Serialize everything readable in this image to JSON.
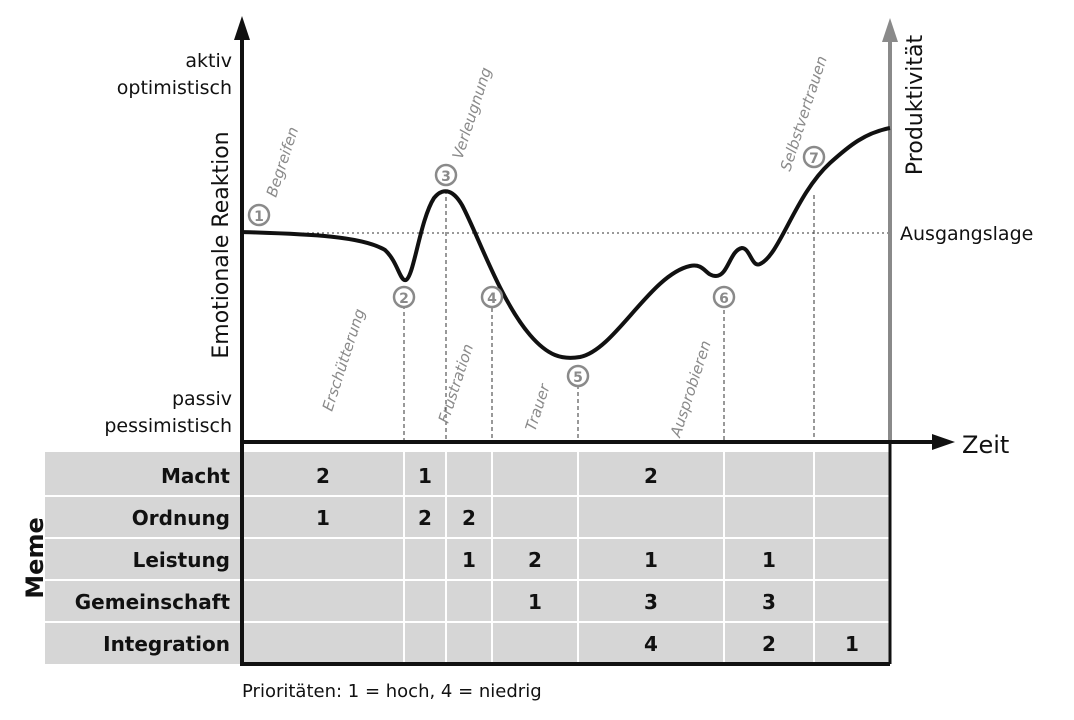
{
  "axes": {
    "y_top_line1": "aktiv",
    "y_top_line2": "optimistisch",
    "y_label": "Emotionale Reaktion",
    "y_bottom_line1": "passiv",
    "y_bottom_line2": "pessimistisch",
    "x_label": "Zeit",
    "right_label": "Produktivität",
    "baseline_label": "Ausgangslage"
  },
  "phases": [
    {
      "num": "1",
      "label": "Begreifen"
    },
    {
      "num": "2",
      "label": "Erschütterung"
    },
    {
      "num": "3",
      "label": "Verleugnung"
    },
    {
      "num": "4",
      "label": "Frustration"
    },
    {
      "num": "5",
      "label": "Trauer"
    },
    {
      "num": "6",
      "label": "Ausprobieren"
    },
    {
      "num": "7",
      "label": "Selbstvertrauen"
    }
  ],
  "table": {
    "group_label": "Meme",
    "rows": [
      {
        "label": "Macht",
        "cells": [
          "2",
          "1",
          "",
          "",
          "2",
          "",
          ""
        ]
      },
      {
        "label": "Ordnung",
        "cells": [
          "1",
          "2",
          "2",
          "",
          "",
          "",
          ""
        ]
      },
      {
        "label": "Leistung",
        "cells": [
          "",
          "",
          "1",
          "2",
          "1",
          "1",
          ""
        ]
      },
      {
        "label": "Gemeinschaft",
        "cells": [
          "",
          "",
          "",
          "1",
          "3",
          "3",
          ""
        ]
      },
      {
        "label": "Integration",
        "cells": [
          "",
          "",
          "",
          "",
          "4",
          "2",
          "1"
        ]
      }
    ]
  },
  "footnote": "Prioritäten: 1 = hoch, 4 = niedrig"
}
